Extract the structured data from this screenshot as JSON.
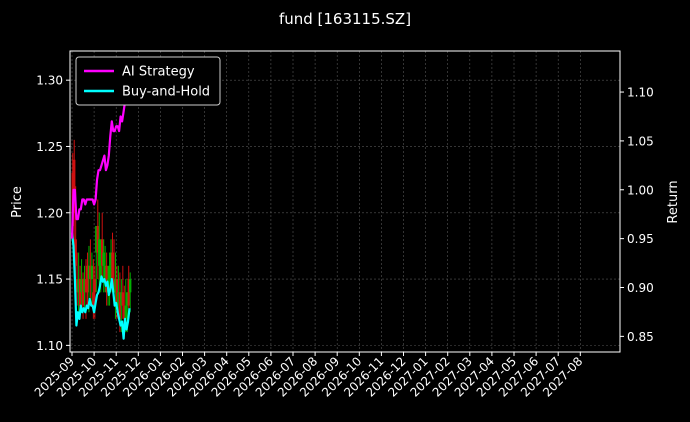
{
  "chart_data": {
    "type": "line",
    "title": "fund [163115.SZ]",
    "ylabel_left": "Price",
    "ylabel_right": "Return",
    "ylim_left": [
      1.095,
      1.322
    ],
    "ylim_right": [
      0.834,
      1.142
    ],
    "yticks_left": [
      "1.10",
      "1.15",
      "1.20",
      "1.25",
      "1.30"
    ],
    "yticks_right": [
      "0.85",
      "0.90",
      "0.95",
      "1.00",
      "1.05",
      "1.10"
    ],
    "xticks": [
      "2025-09",
      "2025-10",
      "2025-11",
      "2025-12",
      "2026-01",
      "2026-02",
      "2026-03",
      "2026-04",
      "2026-05",
      "2026-06",
      "2026-07",
      "2026-08",
      "2026-09",
      "2026-10",
      "2026-11",
      "2026-12",
      "2027-01",
      "2027-02",
      "2027-03",
      "2027-04",
      "2027-05",
      "2027-06",
      "2027-07",
      "2027-08"
    ],
    "legend_position": "top-left",
    "grid": true,
    "series": [
      {
        "name": "AI Strategy",
        "axis": "right",
        "color": "#ff00ff",
        "x": [
          0,
          2,
          4,
          6,
          8,
          10,
          12,
          14,
          16,
          18,
          20,
          22,
          24,
          26,
          28,
          30,
          32,
          34,
          36,
          38,
          40,
          42,
          44,
          46,
          48,
          50,
          52,
          54,
          56,
          58,
          60,
          62,
          64,
          66,
          68,
          70,
          72,
          74,
          76,
          78
        ],
        "values": [
          0.95,
          1.0,
          1.0,
          0.97,
          0.97,
          0.98,
          0.98,
          0.99,
          0.99,
          0.985,
          0.99,
          0.99,
          0.99,
          0.99,
          0.99,
          0.985,
          0.99,
          1.01,
          1.02,
          1.02,
          1.025,
          1.03,
          1.035,
          1.02,
          1.025,
          1.035,
          1.055,
          1.07,
          1.06,
          1.06,
          1.065,
          1.065,
          1.06,
          1.075,
          1.07,
          1.08,
          1.09,
          1.09,
          1.09,
          1.12
        ]
      },
      {
        "name": "Buy-and-Hold",
        "axis": "left",
        "color": "#00ffff",
        "x": [
          0,
          2,
          4,
          6,
          8,
          10,
          12,
          14,
          16,
          18,
          20,
          22,
          24,
          26,
          28,
          30,
          32,
          34,
          36,
          38,
          40,
          42,
          44,
          46,
          48,
          50,
          52,
          54,
          56,
          58,
          60,
          62,
          64,
          66,
          68,
          70,
          72,
          74,
          76,
          78
        ],
        "values": [
          1.185,
          1.175,
          1.15,
          1.115,
          1.125,
          1.12,
          1.13,
          1.125,
          1.128,
          1.125,
          1.13,
          1.128,
          1.135,
          1.13,
          1.13,
          1.125,
          1.132,
          1.138,
          1.14,
          1.145,
          1.152,
          1.148,
          1.15,
          1.145,
          1.148,
          1.138,
          1.142,
          1.15,
          1.14,
          1.13,
          1.132,
          1.125,
          1.12,
          1.115,
          1.118,
          1.105,
          1.12,
          1.112,
          1.118,
          1.128
        ]
      }
    ],
    "candles": {
      "axis": "left",
      "up_color": "#00b000",
      "down_color": "#d01010",
      "x": [
        1,
        3,
        5,
        7,
        9,
        11,
        13,
        15,
        17,
        19,
        21,
        23,
        25,
        27,
        29,
        31,
        33,
        35,
        37,
        39,
        41,
        43,
        45,
        47,
        49,
        51,
        53,
        55,
        57,
        59,
        61,
        63,
        65,
        67,
        69,
        71,
        73,
        75,
        77,
        79
      ],
      "high": [
        1.245,
        1.255,
        1.22,
        1.17,
        1.17,
        1.16,
        1.165,
        1.155,
        1.16,
        1.165,
        1.17,
        1.175,
        1.18,
        1.17,
        1.165,
        1.16,
        1.19,
        1.21,
        1.2,
        1.18,
        1.2,
        1.18,
        1.175,
        1.17,
        1.16,
        1.17,
        1.18,
        1.185,
        1.18,
        1.17,
        1.16,
        1.16,
        1.155,
        1.15,
        1.16,
        1.145,
        1.15,
        1.14,
        1.16,
        1.155
      ],
      "low": [
        1.18,
        1.16,
        1.14,
        1.13,
        1.12,
        1.12,
        1.13,
        1.12,
        1.125,
        1.12,
        1.13,
        1.125,
        1.135,
        1.13,
        1.12,
        1.12,
        1.14,
        1.15,
        1.14,
        1.14,
        1.15,
        1.14,
        1.14,
        1.13,
        1.13,
        1.13,
        1.14,
        1.14,
        1.13,
        1.12,
        1.12,
        1.12,
        1.11,
        1.11,
        1.12,
        1.105,
        1.11,
        1.11,
        1.12,
        1.125
      ],
      "open": [
        1.23,
        1.24,
        1.18,
        1.15,
        1.14,
        1.15,
        1.14,
        1.15,
        1.14,
        1.15,
        1.16,
        1.15,
        1.16,
        1.15,
        1.14,
        1.15,
        1.17,
        1.19,
        1.16,
        1.15,
        1.18,
        1.16,
        1.15,
        1.16,
        1.14,
        1.15,
        1.16,
        1.17,
        1.15,
        1.14,
        1.15,
        1.13,
        1.14,
        1.13,
        1.14,
        1.13,
        1.12,
        1.13,
        1.15,
        1.14
      ],
      "close": [
        1.19,
        1.2,
        1.16,
        1.14,
        1.15,
        1.13,
        1.15,
        1.13,
        1.15,
        1.14,
        1.14,
        1.16,
        1.15,
        1.16,
        1.13,
        1.14,
        1.19,
        1.17,
        1.18,
        1.16,
        1.16,
        1.17,
        1.16,
        1.14,
        1.15,
        1.16,
        1.17,
        1.15,
        1.14,
        1.15,
        1.13,
        1.14,
        1.12,
        1.14,
        1.13,
        1.12,
        1.13,
        1.14,
        1.13,
        1.15
      ]
    }
  }
}
